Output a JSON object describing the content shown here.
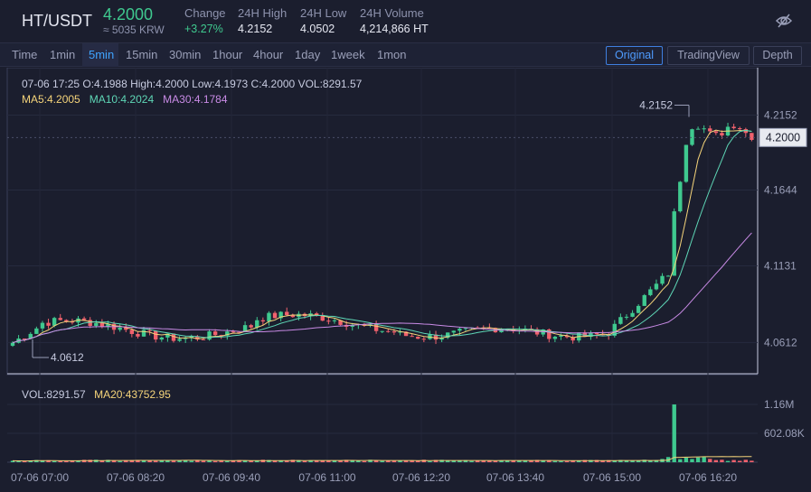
{
  "header": {
    "pair": "HT/USDT",
    "price": "4.2000",
    "approx": "≈ 5035 KRW",
    "change_label": "Change",
    "change_value": "+3.27%",
    "high_label": "24H High",
    "high_value": "4.2152",
    "low_label": "24H Low",
    "low_value": "4.0502",
    "volume_label": "24H Volume",
    "volume_value": "4,214,866 HT",
    "icon": "eye-slash-icon"
  },
  "toolbar": {
    "timeframes": [
      "Time",
      "1min",
      "5min",
      "15min",
      "30min",
      "1hour",
      "4hour",
      "1day",
      "1week",
      "1mon"
    ],
    "active_timeframe": "5min",
    "views": [
      "Original",
      "TradingView",
      "Depth"
    ],
    "active_view": "Original"
  },
  "legend": {
    "ohlc": "07-06 17:25   O:4.1988  High:4.2000   Low:4.1973   C:4.2000   VOL:8291.57",
    "ma5": "MA5:4.2005",
    "ma10": "MA10:4.2024",
    "ma30": "MA30:4.1784",
    "vol": "VOL:8291.57",
    "ma20": "MA20:43752.95"
  },
  "colors": {
    "up": "#3fc98f",
    "down": "#f0616d",
    "ma5": "#f5d47a",
    "ma10": "#5ed6b6",
    "ma30": "#c98be6",
    "accent": "#3fa4ff"
  },
  "chart_data": {
    "type": "candlestick",
    "price_ticks": [
      "4.2152",
      "4.1644",
      "4.1131",
      "4.0612"
    ],
    "price_tick_values": [
      4.2152,
      4.1644,
      4.1131,
      4.0612
    ],
    "current_price_label": "4.2000",
    "current_price": 4.2,
    "max_marker": {
      "label": "4.2152",
      "value": 4.2152
    },
    "min_marker": {
      "label": "4.0612",
      "value": 4.0612
    },
    "volume_ticks": [
      "1.16M",
      "602.08K"
    ],
    "x_ticks": [
      "07-06 07:00",
      "07-06 08:20",
      "07-06 09:40",
      "07-06 11:00",
      "07-06 12:20",
      "07-06 13:40",
      "07-06 15:00",
      "07-06 16:20"
    ],
    "candle_count": 125,
    "price_range": [
      4.04,
      4.232
    ],
    "volume_max": 1.16
  }
}
